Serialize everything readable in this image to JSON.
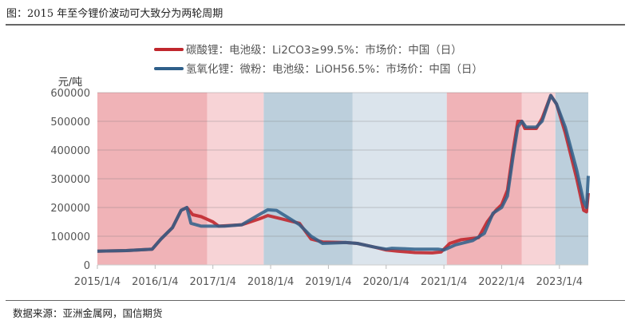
{
  "title": "图：2015 年至今锂价波动可大致分为两轮周期",
  "source": "数据来源：亚洲金属网，国信期货",
  "chart_data": {
    "type": "line",
    "ylabel": "元/吨",
    "ylim": [
      0,
      600000
    ],
    "yticks": [
      "0",
      "100000",
      "200000",
      "300000",
      "400000",
      "500000",
      "600000"
    ],
    "xlim": [
      2015.0,
      2023.5
    ],
    "xticks": [
      {
        "v": 2015.0,
        "label": "2015/1/4"
      },
      {
        "v": 2016.0,
        "label": "2016/1/4"
      },
      {
        "v": 2017.0,
        "label": "2017/1/4"
      },
      {
        "v": 2018.0,
        "label": "2018/1/4"
      },
      {
        "v": 2019.0,
        "label": "2019/1/4"
      },
      {
        "v": 2020.0,
        "label": "2020/1/4"
      },
      {
        "v": 2021.0,
        "label": "2021/1/4"
      },
      {
        "v": 2022.0,
        "label": "2022/1/4"
      },
      {
        "v": 2023.0,
        "label": "2023/1/4"
      }
    ],
    "grid": true,
    "legend_position": "top",
    "shaded_periods": [
      {
        "from": 2015.0,
        "to": 2016.9,
        "color": "#f0b3b7"
      },
      {
        "from": 2016.9,
        "to": 2017.88,
        "color": "#f7d3d6"
      },
      {
        "from": 2017.88,
        "to": 2019.42,
        "color": "#bccfdc"
      },
      {
        "from": 2019.42,
        "to": 2021.05,
        "color": "#dbe4ec"
      },
      {
        "from": 2021.05,
        "to": 2022.35,
        "color": "#f0b3b7"
      },
      {
        "from": 2022.35,
        "to": 2022.93,
        "color": "#f7d3d6"
      },
      {
        "from": 2022.93,
        "to": 2023.5,
        "color": "#bccfdc"
      }
    ],
    "series": [
      {
        "name": "碳酸锂：电池级：Li2CO3≥99.5%：市场价：中国（日）",
        "color": "#c0272d",
        "x": [
          2015.0,
          2015.5,
          2015.95,
          2016.1,
          2016.3,
          2016.45,
          2016.55,
          2016.65,
          2016.8,
          2017.0,
          2017.1,
          2017.5,
          2017.8,
          2017.95,
          2018.2,
          2018.5,
          2018.7,
          2018.9,
          2019.3,
          2019.5,
          2019.8,
          2020.0,
          2020.2,
          2020.5,
          2020.8,
          2020.95,
          2021.1,
          2021.3,
          2021.6,
          2021.75,
          2021.9,
          2022.0,
          2022.1,
          2022.2,
          2022.28,
          2022.35,
          2022.4,
          2022.6,
          2022.7,
          2022.85,
          2022.95,
          2023.1,
          2023.3,
          2023.42,
          2023.47,
          2023.5
        ],
        "y": [
          48000,
          50000,
          55000,
          90000,
          130000,
          190000,
          200000,
          175000,
          168000,
          150000,
          135000,
          140000,
          160000,
          172000,
          160000,
          145000,
          90000,
          80000,
          78000,
          75000,
          62000,
          52000,
          48000,
          43000,
          42000,
          45000,
          75000,
          88000,
          95000,
          150000,
          190000,
          210000,
          260000,
          400000,
          500000,
          500000,
          475000,
          475000,
          510000,
          590000,
          560000,
          460000,
          300000,
          190000,
          185000,
          250000
        ]
      },
      {
        "name": "氢氧化锂：微粉：电池级：LiOH56.5%：市场价：中国（日）",
        "color": "#2e5f8a",
        "x": [
          2015.0,
          2015.5,
          2015.95,
          2016.1,
          2016.3,
          2016.45,
          2016.55,
          2016.62,
          2016.8,
          2017.0,
          2017.2,
          2017.5,
          2017.8,
          2017.95,
          2018.1,
          2018.3,
          2018.5,
          2018.7,
          2018.9,
          2019.3,
          2019.5,
          2019.8,
          2020.0,
          2020.1,
          2020.5,
          2020.9,
          2021.0,
          2021.2,
          2021.5,
          2021.7,
          2021.85,
          2022.0,
          2022.1,
          2022.2,
          2022.28,
          2022.35,
          2022.42,
          2022.6,
          2022.7,
          2022.85,
          2022.95,
          2023.1,
          2023.3,
          2023.42,
          2023.47,
          2023.5
        ],
        "y": [
          48000,
          50000,
          55000,
          90000,
          130000,
          190000,
          200000,
          145000,
          135000,
          135000,
          135000,
          140000,
          175000,
          192000,
          190000,
          165000,
          140000,
          100000,
          75000,
          78000,
          75000,
          62000,
          55000,
          58000,
          55000,
          55000,
          52000,
          70000,
          85000,
          110000,
          180000,
          200000,
          240000,
          380000,
          480000,
          500000,
          480000,
          480000,
          500000,
          590000,
          560000,
          480000,
          330000,
          220000,
          200000,
          310000
        ]
      }
    ]
  }
}
